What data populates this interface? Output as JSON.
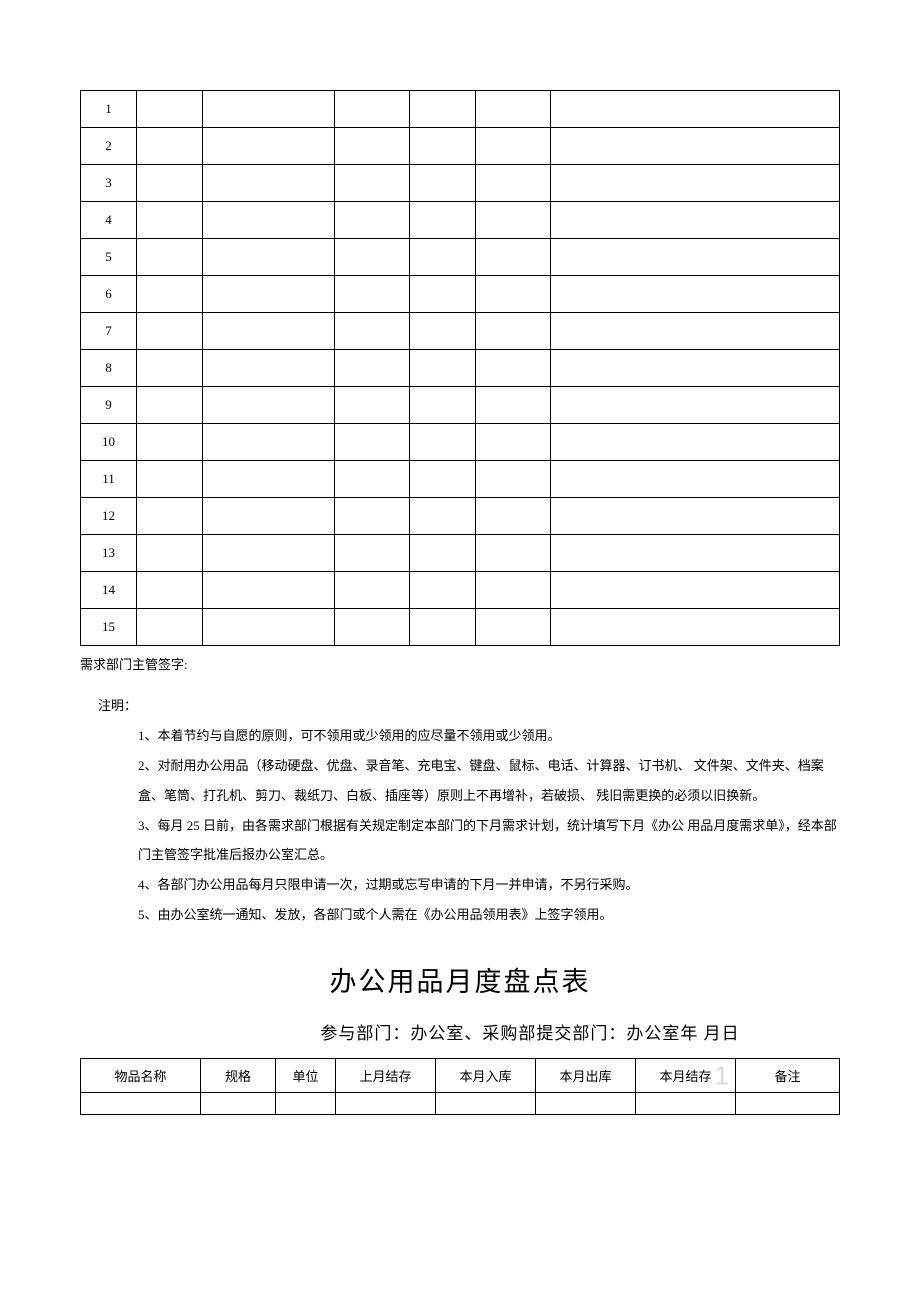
{
  "table1": {
    "rows": [
      "1",
      "2",
      "3",
      "4",
      "5",
      "6",
      "7",
      "8",
      "9",
      "10",
      "11",
      "12",
      "13",
      "14",
      "15"
    ],
    "num_cols": 7
  },
  "signature": "需求部门主管签字:",
  "notes": {
    "title": "注明：",
    "items": [
      "1、本着节约与自愿的原则，可不领用或少领用的应尽量不领用或少领用。",
      "2、对耐用办公用品（移动硬盘、优盘、录音笔、充电宝、键盘、鼠标、电话、计算器、订书机、 文件架、文件夹、档案盒、笔筒、打孔机、剪刀、裁纸刀、白板、插座等）原则上不再增补，若破损、 残旧需更换的必须以旧换新。",
      "3、每月 25 日前，由各需求部门根据有关规定制定本部门的下月需求计划，统计填写下月《办公 用品月度需求单》，经本部门主管签字批准后报办公室汇总。",
      "4、各部门办公用品每月只限申请一次，过期或忘写申请的下月一并申请，不另行采购。",
      "5、由办公室统一通知、发放，各部门或个人需在《办公用品领用表》上签字领用。"
    ]
  },
  "section2": {
    "title": "办公用品月度盘点表",
    "subtitle": "参与部门：办公室、采购部提交部门：办公室年  月日",
    "headers": [
      "物品名称",
      "规格",
      "单位",
      "上月结存",
      "本月入库",
      "本月出库",
      "本月结存",
      "备注"
    ],
    "ghost": "1"
  },
  "colors": {
    "text": "#000000",
    "border": "#000000",
    "background": "#ffffff",
    "ghost": "#d9d9d9"
  }
}
